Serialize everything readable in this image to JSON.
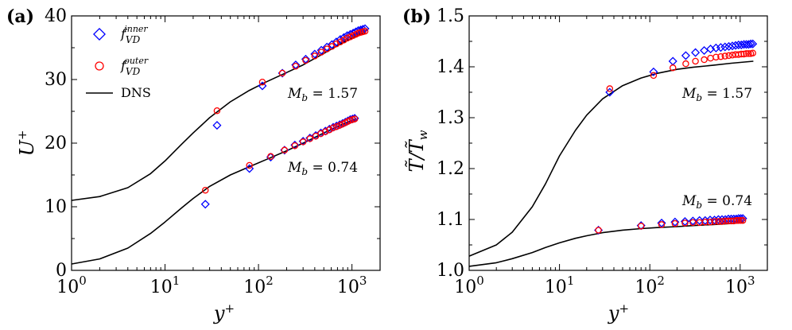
{
  "figure": {
    "panels": [
      "(a)",
      "(b)"
    ]
  },
  "chart_data": [
    {
      "type": "scatter",
      "panel_label": "(a)",
      "xscale": "log",
      "xlabel": "y⁺",
      "ylabel": "U⁺",
      "xlim": [
        1,
        2000
      ],
      "ylim": [
        0,
        40
      ],
      "yticks": [
        "0",
        "10",
        "20",
        "30",
        "40"
      ],
      "xticks": [
        "10⁰",
        "10¹",
        "10²",
        "10³"
      ],
      "legend": {
        "placement": "top-left",
        "entries": [
          {
            "label": "f_VD^inner",
            "marker": "diamond",
            "color": "#0000ff"
          },
          {
            "label": "f_VD^outer",
            "marker": "circle",
            "color": "#ff0000"
          },
          {
            "label": "DNS",
            "marker": "line",
            "color": "#000000"
          }
        ]
      },
      "annotations": [
        "M_b = 1.57",
        "M_b = 0.74"
      ],
      "series": [
        {
          "name": "DNS",
          "style": "line",
          "case": "1.57",
          "x": [
            1,
            2,
            4,
            7,
            10,
            15,
            20,
            30,
            50,
            80,
            120,
            200,
            300,
            500,
            800,
            1200,
            1400
          ],
          "y": [
            11.0,
            11.6,
            13.0,
            15.2,
            17.2,
            19.8,
            21.6,
            24.0,
            26.5,
            28.3,
            29.6,
            31.1,
            32.3,
            34.1,
            35.8,
            37.1,
            37.3
          ]
        },
        {
          "name": "f_VD^inner",
          "style": "diamond",
          "case": "1.57",
          "x": [
            36,
            110,
            180,
            250,
            320,
            400,
            470,
            540,
            610,
            680,
            750,
            820,
            890,
            960,
            1030,
            1100,
            1170,
            1240,
            1310,
            1380
          ],
          "y": [
            22.8,
            29.0,
            31.0,
            32.3,
            33.2,
            34.0,
            34.6,
            35.1,
            35.5,
            35.9,
            36.3,
            36.6,
            36.9,
            37.1,
            37.3,
            37.5,
            37.7,
            37.8,
            37.9,
            38.0
          ]
        },
        {
          "name": "f_VD^outer",
          "style": "circle",
          "case": "1.57",
          "x": [
            36,
            110,
            180,
            250,
            320,
            400,
            470,
            540,
            610,
            680,
            750,
            820,
            890,
            960,
            1030,
            1100,
            1170,
            1240,
            1310,
            1380
          ],
          "y": [
            25.1,
            29.6,
            31.0,
            32.1,
            33.0,
            33.7,
            34.3,
            34.8,
            35.2,
            35.6,
            35.9,
            36.2,
            36.5,
            36.7,
            36.9,
            37.1,
            37.3,
            37.4,
            37.5,
            37.6
          ]
        },
        {
          "name": "DNS",
          "style": "line",
          "case": "0.74",
          "x": [
            1,
            2,
            4,
            7,
            10,
            15,
            20,
            30,
            50,
            80,
            120,
            200,
            300,
            500,
            800,
            1100
          ],
          "y": [
            1.0,
            1.8,
            3.5,
            5.8,
            7.6,
            9.8,
            11.3,
            13.2,
            15.0,
            16.3,
            17.4,
            18.8,
            20.0,
            21.6,
            23.0,
            23.8
          ]
        },
        {
          "name": "f_VD^inner",
          "style": "diamond",
          "case": "0.74",
          "x": [
            27,
            80,
            135,
            190,
            245,
            300,
            355,
            410,
            465,
            520,
            575,
            630,
            685,
            740,
            795,
            850,
            905,
            960,
            1015,
            1070
          ],
          "y": [
            10.4,
            16.0,
            17.8,
            18.9,
            19.7,
            20.3,
            20.8,
            21.2,
            21.6,
            21.9,
            22.2,
            22.5,
            22.7,
            22.9,
            23.1,
            23.3,
            23.5,
            23.7,
            23.8,
            23.9
          ]
        },
        {
          "name": "f_VD^outer",
          "style": "circle",
          "case": "0.74",
          "x": [
            27,
            80,
            135,
            190,
            245,
            300,
            355,
            410,
            465,
            520,
            575,
            630,
            685,
            740,
            795,
            850,
            905,
            960,
            1015,
            1070
          ],
          "y": [
            12.6,
            16.5,
            17.9,
            18.9,
            19.6,
            20.2,
            20.7,
            21.1,
            21.5,
            21.8,
            22.1,
            22.4,
            22.6,
            22.8,
            23.0,
            23.2,
            23.4,
            23.6,
            23.7,
            23.8
          ]
        }
      ]
    },
    {
      "type": "scatter",
      "panel_label": "(b)",
      "xscale": "log",
      "xlabel": "y⁺",
      "ylabel": "T̃/T̃_w",
      "xlim": [
        1,
        2000
      ],
      "ylim": [
        1.0,
        1.5
      ],
      "yticks": [
        "1.0",
        "1.1",
        "1.2",
        "1.3",
        "1.4",
        "1.5"
      ],
      "xticks": [
        "10⁰",
        "10¹",
        "10²",
        "10³"
      ],
      "annotations": [
        "M_b = 1.57",
        "M_b = 0.74"
      ],
      "series": [
        {
          "name": "DNS",
          "style": "line",
          "case": "1.57",
          "x": [
            1,
            2,
            3,
            5,
            7,
            10,
            15,
            20,
            30,
            50,
            80,
            120,
            200,
            300,
            500,
            800,
            1400
          ],
          "y": [
            1.028,
            1.05,
            1.075,
            1.125,
            1.17,
            1.225,
            1.275,
            1.305,
            1.337,
            1.363,
            1.378,
            1.387,
            1.395,
            1.399,
            1.403,
            1.407,
            1.411
          ]
        },
        {
          "name": "f_VD^inner",
          "style": "diamond",
          "case": "1.57",
          "x": [
            36,
            110,
            180,
            250,
            320,
            400,
            470,
            540,
            610,
            680,
            750,
            820,
            890,
            960,
            1030,
            1100,
            1170,
            1240,
            1310,
            1380
          ],
          "y": [
            1.35,
            1.39,
            1.411,
            1.422,
            1.428,
            1.432,
            1.435,
            1.437,
            1.438,
            1.439,
            1.44,
            1.441,
            1.442,
            1.443,
            1.443,
            1.444,
            1.444,
            1.444,
            1.445,
            1.445
          ]
        },
        {
          "name": "f_VD^outer",
          "style": "circle",
          "case": "1.57",
          "x": [
            36,
            110,
            180,
            250,
            320,
            400,
            470,
            540,
            610,
            680,
            750,
            820,
            890,
            960,
            1030,
            1100,
            1170,
            1240,
            1310,
            1380
          ],
          "y": [
            1.357,
            1.383,
            1.398,
            1.406,
            1.411,
            1.414,
            1.417,
            1.419,
            1.42,
            1.421,
            1.422,
            1.423,
            1.424,
            1.424,
            1.425,
            1.425,
            1.426,
            1.426,
            1.426,
            1.427
          ]
        },
        {
          "name": "DNS",
          "style": "line",
          "case": "0.74",
          "x": [
            1,
            2,
            3,
            5,
            7,
            10,
            15,
            20,
            30,
            50,
            80,
            120,
            200,
            300,
            500,
            800,
            1100
          ],
          "y": [
            1.008,
            1.015,
            1.023,
            1.035,
            1.045,
            1.054,
            1.063,
            1.068,
            1.074,
            1.079,
            1.082,
            1.084,
            1.086,
            1.088,
            1.09,
            1.092,
            1.094
          ]
        },
        {
          "name": "f_VD^inner",
          "style": "diamond",
          "case": "0.74",
          "x": [
            27,
            80,
            135,
            190,
            245,
            300,
            355,
            410,
            465,
            520,
            575,
            630,
            685,
            740,
            795,
            850,
            905,
            960,
            1015,
            1070
          ],
          "y": [
            1.079,
            1.088,
            1.093,
            1.095,
            1.096,
            1.097,
            1.098,
            1.098,
            1.099,
            1.099,
            1.1,
            1.1,
            1.1,
            1.101,
            1.101,
            1.101,
            1.101,
            1.102,
            1.102,
            1.102
          ]
        },
        {
          "name": "f_VD^outer",
          "style": "circle",
          "case": "0.74",
          "x": [
            27,
            80,
            135,
            190,
            245,
            300,
            355,
            410,
            465,
            520,
            575,
            630,
            685,
            740,
            795,
            850,
            905,
            960,
            1015,
            1070
          ],
          "y": [
            1.079,
            1.087,
            1.09,
            1.092,
            1.093,
            1.094,
            1.094,
            1.095,
            1.095,
            1.096,
            1.096,
            1.096,
            1.097,
            1.097,
            1.097,
            1.097,
            1.098,
            1.098,
            1.098,
            1.098
          ]
        }
      ]
    }
  ]
}
